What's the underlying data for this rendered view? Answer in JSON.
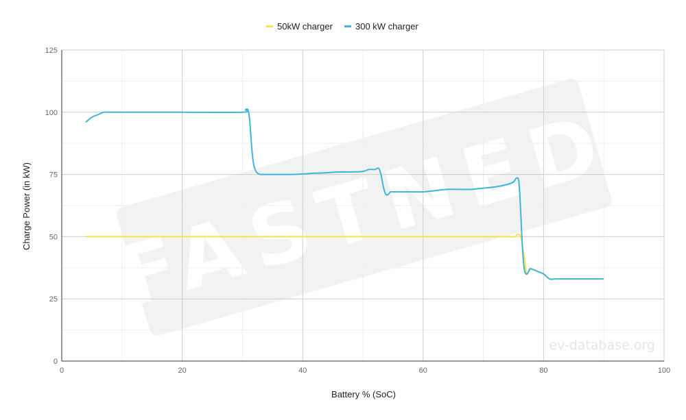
{
  "chart_data": {
    "type": "line",
    "xlabel": "Battery % (SoC)",
    "ylabel": "Charge Power (in kW)",
    "xlim": [
      0,
      100
    ],
    "ylim": [
      0,
      125
    ],
    "x_ticks": [
      0,
      20,
      40,
      60,
      80,
      100
    ],
    "y_ticks": [
      0,
      25,
      50,
      75,
      100,
      125
    ],
    "grid": true,
    "legend_position": "top-center",
    "series": [
      {
        "name": "50kW charger",
        "color": "#fbe14b",
        "x": [
          4,
          10,
          20,
          30,
          40,
          50,
          60,
          70,
          74,
          75.2,
          75.7,
          76.2,
          76.6,
          76.9,
          77.1,
          77.3,
          77.6,
          78,
          79,
          80,
          81,
          82,
          85,
          90
        ],
        "y": [
          50,
          50,
          50,
          50,
          50,
          50,
          50,
          50,
          50,
          50,
          51,
          50,
          45,
          40,
          36,
          35,
          36,
          37,
          36,
          35,
          33,
          33,
          33,
          33
        ]
      },
      {
        "name": "300 kW charger",
        "color": "#3eb6d9",
        "x": [
          4,
          5,
          6,
          7,
          8,
          10,
          20,
          30,
          30.5,
          30.9,
          31.2,
          31.5,
          31.8,
          32.1,
          32.5,
          33,
          33.5,
          34,
          38,
          40,
          42,
          44,
          46,
          48,
          50,
          51,
          52,
          52.6,
          53,
          53.4,
          53.8,
          54.2,
          54.6,
          55,
          56,
          58,
          60,
          62,
          64,
          66,
          68,
          70,
          72,
          74,
          75.0,
          75.5,
          75.9,
          76.2,
          76.5,
          76.8,
          77.1,
          77.4,
          77.7,
          78,
          79,
          80,
          81,
          82,
          85,
          90
        ],
        "y": [
          96,
          98,
          99,
          100,
          100,
          100,
          100,
          100,
          101,
          101,
          97,
          87,
          80,
          77,
          75.5,
          75,
          75,
          75,
          75,
          75.2,
          75.5,
          75.7,
          76,
          76,
          76.2,
          77,
          77,
          77.5,
          75,
          70,
          67,
          67,
          68,
          68,
          68,
          68,
          68,
          68.5,
          69,
          69,
          69,
          69.5,
          70,
          71,
          72,
          73.5,
          72,
          60,
          45,
          37,
          35,
          35.5,
          37,
          37,
          36,
          35,
          33,
          33,
          33,
          33
        ]
      }
    ],
    "watermark": "FASTNED",
    "source_label": "ev-database.org"
  }
}
